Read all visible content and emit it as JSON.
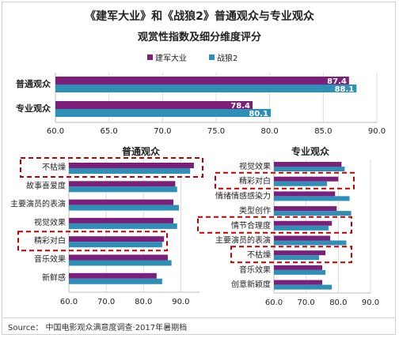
{
  "page": {
    "title": "《建军大业》和《战狼2》普通观众与专业观众",
    "subtitle": "观赏性指数及细分维度评分",
    "source": "Source： 中国电影观众满意度调查·2017年暑期档"
  },
  "colors": {
    "series1": "#7b1f7a",
    "series2": "#2e8fb7",
    "highlight": "#c00000"
  },
  "chart_data": [
    {
      "type": "bar",
      "orientation": "horizontal",
      "title": "",
      "categories": [
        "普通观众",
        "专业观众"
      ],
      "series": [
        {
          "name": "建军大业",
          "values": [
            87.4,
            78.4
          ]
        },
        {
          "name": "战狼2",
          "values": [
            88.1,
            80.1
          ]
        }
      ],
      "xlim": [
        60,
        90
      ],
      "ticks": [
        "60.0",
        "65.0",
        "70.0",
        "75.0",
        "80.0",
        "85.0",
        "90.0"
      ],
      "tick_values": [
        60,
        65,
        70,
        75,
        80,
        85,
        90
      ],
      "legend": "top-center",
      "data_labels": true
    },
    {
      "type": "bar",
      "orientation": "horizontal",
      "title": "普通观众",
      "categories": [
        "不枯燥",
        "故事喜爱度",
        "主要演员的表演",
        "视觉效果",
        "精彩对白",
        "音乐效果",
        "新鲜感"
      ],
      "series": [
        {
          "name": "建军大业",
          "values": [
            93.5,
            88.5,
            88.0,
            88.0,
            85.5,
            86.5,
            83.5
          ]
        },
        {
          "name": "战狼2",
          "values": [
            92.5,
            89.0,
            89.5,
            89.0,
            85.0,
            87.5,
            85.0
          ]
        }
      ],
      "xlim": [
        60,
        95
      ],
      "ticks": [
        "60.0",
        "70.0",
        "80.0",
        "90.0"
      ],
      "tick_values": [
        60,
        70,
        80,
        90
      ],
      "highlighted": [
        "不枯燥",
        "精彩对白"
      ]
    },
    {
      "type": "bar",
      "orientation": "horizontal",
      "title": "专业观众",
      "categories": [
        "视觉效果",
        "精彩对白",
        "情绪情感感染力",
        "类型创作",
        "情节合理度",
        "主要演员的表演",
        "不枯燥",
        "音乐效果",
        "创意新颖度"
      ],
      "series": [
        {
          "name": "建军大业",
          "values": [
            81.0,
            80.0,
            79.0,
            79.5,
            78.0,
            77.5,
            76.0,
            75.0,
            75.0
          ]
        },
        {
          "name": "战狼2",
          "values": [
            82.0,
            76.5,
            83.5,
            84.0,
            77.0,
            82.5,
            74.0,
            76.0,
            78.0
          ]
        }
      ],
      "xlim": [
        60,
        90
      ],
      "ticks": [
        "60.0",
        "70.0",
        "80.0",
        "90.0"
      ],
      "tick_values": [
        60,
        70,
        80,
        90
      ],
      "highlighted": [
        "精彩对白",
        "情节合理度",
        "不枯燥"
      ]
    }
  ]
}
